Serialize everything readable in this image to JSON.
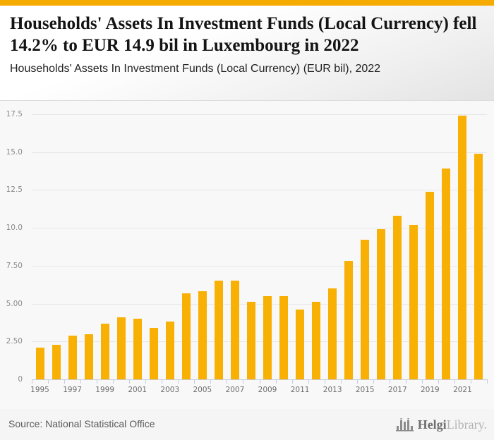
{
  "banner": {
    "color": "#F5AB00"
  },
  "header": {
    "title": "Households' Assets In Investment Funds (Local Currency) fell 14.2% to EUR 14.9 bil in Luxembourg in 2022",
    "subtitle": "Households' Assets In Investment Funds (Local Currency) (EUR bil), 2022"
  },
  "chart_data": {
    "type": "bar",
    "title": "Households' Assets In Investment Funds (Local Currency) fell 14.2% to EUR 14.9 bil in Luxembourg in 2022",
    "subtitle": "Households' Assets In Investment Funds (Local Currency) (EUR bil), 2022",
    "xlabel": "",
    "ylabel": "",
    "ylim": [
      0,
      17.5
    ],
    "grid": "horizontal",
    "legend_position": "none",
    "bar_color": "#F9B005",
    "grid_color": "#e7e7e7",
    "axis_color": "#c5cbe3",
    "categories": [
      "1995",
      "1996",
      "1997",
      "1998",
      "1999",
      "2000",
      "2001",
      "2002",
      "2003",
      "2004",
      "2005",
      "2006",
      "2007",
      "2008",
      "2009",
      "2010",
      "2011",
      "2012",
      "2013",
      "2014",
      "2015",
      "2016",
      "2017",
      "2018",
      "2019",
      "2020",
      "2021",
      "2022"
    ],
    "values": [
      2.1,
      2.3,
      2.9,
      3.0,
      3.7,
      4.1,
      4.0,
      3.4,
      3.8,
      5.7,
      5.8,
      6.5,
      6.5,
      5.1,
      5.5,
      5.5,
      4.6,
      5.1,
      6.0,
      7.8,
      9.2,
      9.9,
      10.8,
      10.2,
      12.4,
      13.9,
      17.4,
      14.9
    ],
    "yticks": [
      {
        "v": 0,
        "label": "0"
      },
      {
        "v": 2.5,
        "label": "2.50"
      },
      {
        "v": 5,
        "label": "5.00"
      },
      {
        "v": 7.5,
        "label": "7.50"
      },
      {
        "v": 10,
        "label": "10.0"
      },
      {
        "v": 12.5,
        "label": "12.5"
      },
      {
        "v": 15,
        "label": "15.0"
      },
      {
        "v": 17.5,
        "label": "17.5"
      }
    ],
    "xtick_labels": [
      "1995",
      "1997",
      "1999",
      "2001",
      "2003",
      "2005",
      "2007",
      "2009",
      "2011",
      "2013",
      "2015",
      "2017",
      "2019",
      "2021"
    ]
  },
  "footer": {
    "source": "Source: National Statistical Office",
    "logo_primary": "Helgi",
    "logo_secondary": "Library."
  }
}
